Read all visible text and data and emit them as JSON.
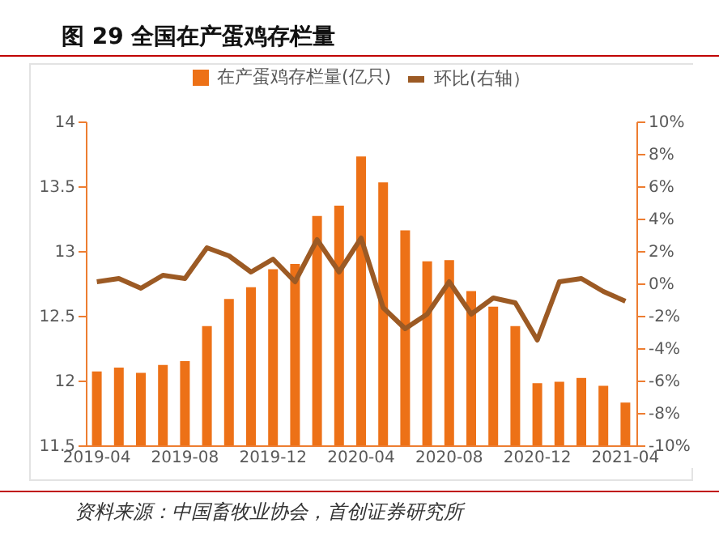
{
  "chart_data": {
    "type": "bar",
    "title": "图 29 全国在产蛋鸡存栏量",
    "categories": [
      "2019-04",
      null,
      null,
      null,
      "2019-08",
      null,
      null,
      null,
      "2019-12",
      null,
      null,
      null,
      "2020-04",
      null,
      null,
      null,
      "2020-08",
      null,
      null,
      null,
      "2020-12",
      null,
      null,
      null,
      "2021-04"
    ],
    "series": [
      {
        "name": "在产蛋鸡存栏量(亿只)",
        "color": "#ed7117",
        "values": [
          12.07,
          12.1,
          12.06,
          12.12,
          12.15,
          12.42,
          12.63,
          12.72,
          12.86,
          12.9,
          13.27,
          13.35,
          13.73,
          13.53,
          13.16,
          12.92,
          12.93,
          12.69,
          12.57,
          12.42,
          11.98,
          11.99,
          12.02,
          11.96,
          11.83
        ]
      },
      {
        "name": "环比(右轴）",
        "type": "line",
        "axis": "y2",
        "color": "#9c5a24",
        "values": [
          0.1,
          0.3,
          -0.3,
          0.5,
          0.3,
          2.2,
          1.7,
          0.7,
          1.5,
          0.1,
          2.7,
          0.7,
          2.8,
          -1.5,
          -2.8,
          -1.9,
          0.1,
          -1.9,
          -0.9,
          -1.2,
          -3.5,
          0.1,
          0.3,
          -0.5,
          -1.1
        ]
      }
    ],
    "ylim": [
      11.5,
      14
    ],
    "yticks": [
      11.5,
      12,
      12.5,
      13,
      13.5,
      14
    ],
    "y2lim": [
      -10,
      10
    ],
    "y2ticks": [
      {
        "value": -10,
        "label": "-10%"
      },
      {
        "value": -8,
        "label": "-8%"
      },
      {
        "value": -6,
        "label": "-6%"
      },
      {
        "value": -4,
        "label": "-4%"
      },
      {
        "value": -2,
        "label": "-2%"
      },
      {
        "value": 0,
        "label": "0%"
      },
      {
        "value": 2,
        "label": "2%"
      },
      {
        "value": 4,
        "label": "4%"
      },
      {
        "value": 6,
        "label": "6%"
      },
      {
        "value": 8,
        "label": "8%"
      },
      {
        "value": 10,
        "label": "10%"
      }
    ],
    "grid": false,
    "legend": "top",
    "marker": "none",
    "line_style": "solid",
    "annotations": [
      "资料来源：中国畜牧业协会，首创证券研究所"
    ]
  }
}
